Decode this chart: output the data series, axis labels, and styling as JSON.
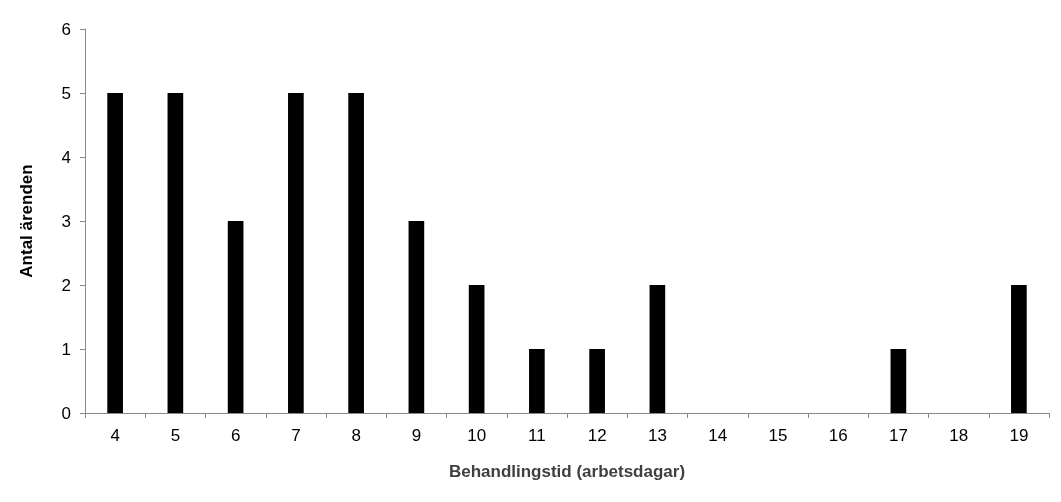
{
  "chart_data": {
    "type": "bar",
    "xlabel": "Behandlingstid (arbetsdagar)",
    "ylabel": "Antal ärenden",
    "categories": [
      "4",
      "5",
      "6",
      "7",
      "8",
      "9",
      "10",
      "11",
      "12",
      "13",
      "14",
      "15",
      "16",
      "17",
      "18",
      "19"
    ],
    "values": [
      5,
      5,
      3,
      5,
      5,
      3,
      2,
      1,
      1,
      2,
      0,
      0,
      0,
      1,
      0,
      2
    ],
    "color": "#000000",
    "ylim": [
      0,
      6
    ],
    "yticks": [
      0,
      1,
      2,
      3,
      4,
      5,
      6
    ],
    "grid": false
  }
}
